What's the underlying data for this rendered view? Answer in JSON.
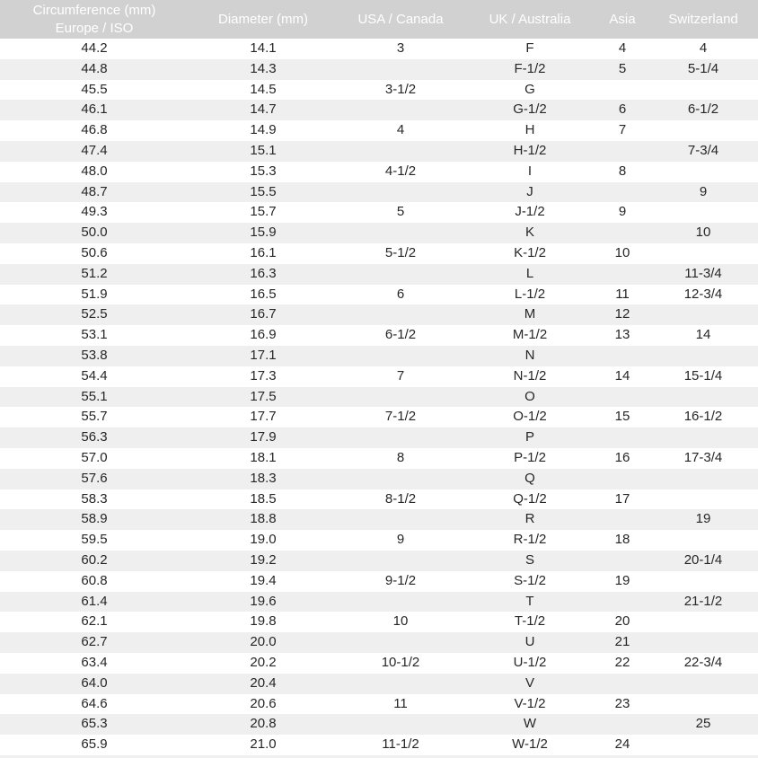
{
  "colors": {
    "header_bg": "#d1d1d1",
    "header_text": "#ffffff",
    "stripe_bg": "#efefef",
    "body_text": "#262626"
  },
  "table": {
    "header": {
      "circumference_line1": "Circumference (mm)",
      "circumference_line2": "Europe / ISO",
      "diameter": "Diameter (mm)",
      "usa_canada": "USA / Canada",
      "uk_australia": "UK / Australia",
      "asia": "Asia",
      "switzerland": "Switzerland"
    },
    "column_keys": [
      "circumference",
      "diameter",
      "usa_canada",
      "uk_australia",
      "asia",
      "switzerland"
    ],
    "rows": [
      [
        "44.2",
        "14.1",
        "3",
        "F",
        "4",
        "4"
      ],
      [
        "44.8",
        "14.3",
        "",
        "F-1/2",
        "5",
        "5-1/4"
      ],
      [
        "45.5",
        "14.5",
        "3-1/2",
        "G",
        "",
        ""
      ],
      [
        "46.1",
        "14.7",
        "",
        "G-1/2",
        "6",
        "6-1/2"
      ],
      [
        "46.8",
        "14.9",
        "4",
        "H",
        "7",
        ""
      ],
      [
        "47.4",
        "15.1",
        "",
        "H-1/2",
        "",
        "7-3/4"
      ],
      [
        "48.0",
        "15.3",
        "4-1/2",
        "I",
        "8",
        ""
      ],
      [
        "48.7",
        "15.5",
        "",
        "J",
        "",
        "9"
      ],
      [
        "49.3",
        "15.7",
        "5",
        "J-1/2",
        "9",
        ""
      ],
      [
        "50.0",
        "15.9",
        "",
        "K",
        "",
        "10"
      ],
      [
        "50.6",
        "16.1",
        "5-1/2",
        "K-1/2",
        "10",
        ""
      ],
      [
        "51.2",
        "16.3",
        "",
        "L",
        "",
        "11-3/4"
      ],
      [
        "51.9",
        "16.5",
        "6",
        "L-1/2",
        "11",
        "12-3/4"
      ],
      [
        "52.5",
        "16.7",
        "",
        "M",
        "12",
        ""
      ],
      [
        "53.1",
        "16.9",
        "6-1/2",
        "M-1/2",
        "13",
        "14"
      ],
      [
        "53.8",
        "17.1",
        "",
        "N",
        "",
        ""
      ],
      [
        "54.4",
        "17.3",
        "7",
        "N-1/2",
        "14",
        "15-1/4"
      ],
      [
        "55.1",
        "17.5",
        "",
        "O",
        "",
        ""
      ],
      [
        "55.7",
        "17.7",
        "7-1/2",
        "O-1/2",
        "15",
        "16-1/2"
      ],
      [
        "56.3",
        "17.9",
        "",
        "P",
        "",
        ""
      ],
      [
        "57.0",
        "18.1",
        "8",
        "P-1/2",
        "16",
        "17-3/4"
      ],
      [
        "57.6",
        "18.3",
        "",
        "Q",
        "",
        ""
      ],
      [
        "58.3",
        "18.5",
        "8-1/2",
        "Q-1/2",
        "17",
        ""
      ],
      [
        "58.9",
        "18.8",
        "",
        "R",
        "",
        "19"
      ],
      [
        "59.5",
        "19.0",
        "9",
        "R-1/2",
        "18",
        ""
      ],
      [
        "60.2",
        "19.2",
        "",
        "S",
        "",
        "20-1/4"
      ],
      [
        "60.8",
        "19.4",
        "9-1/2",
        "S-1/2",
        "19",
        ""
      ],
      [
        "61.4",
        "19.6",
        "",
        "T",
        "",
        "21-1/2"
      ],
      [
        "62.1",
        "19.8",
        "10",
        "T-1/2",
        "20",
        ""
      ],
      [
        "62.7",
        "20.0",
        "",
        "U",
        "21",
        ""
      ],
      [
        "63.4",
        "20.2",
        "10-1/2",
        "U-1/2",
        "22",
        "22-3/4"
      ],
      [
        "64.0",
        "20.4",
        "",
        "V",
        "",
        ""
      ],
      [
        "64.6",
        "20.6",
        "11",
        "V-1/2",
        "23",
        ""
      ],
      [
        "65.3",
        "20.8",
        "",
        "W",
        "",
        "25"
      ],
      [
        "65.9",
        "21.0",
        "11-1/2",
        "W-1/2",
        "24",
        ""
      ]
    ]
  }
}
